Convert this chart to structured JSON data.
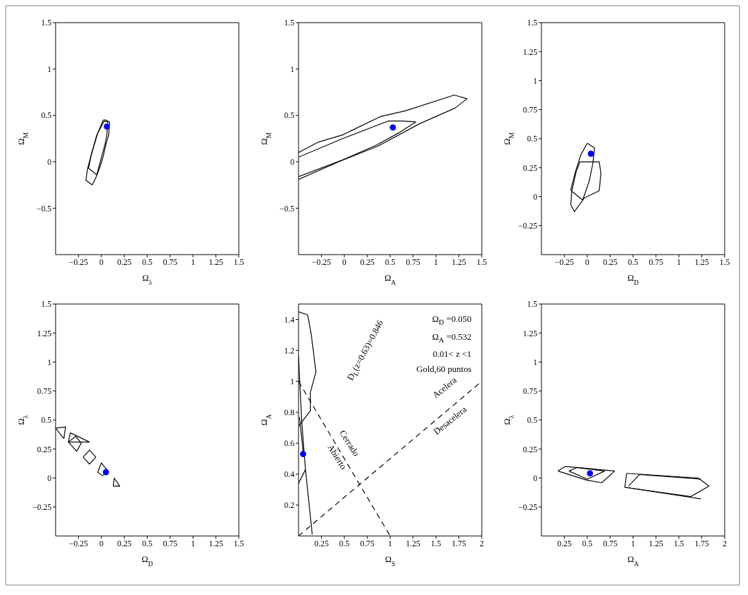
{
  "chart_data": [
    {
      "type": "line",
      "xlabel": "Ω$_{λ}$",
      "ylabel": "Ω$_{M}$",
      "xlim": [
        -0.5,
        1.5
      ],
      "ylim": [
        -1,
        1.5
      ],
      "xticks": [
        -0.25,
        0,
        0.25,
        0.5,
        0.75,
        1,
        1.25,
        1.5
      ],
      "yticks": [
        -0.5,
        0,
        0.5,
        1,
        1.5
      ],
      "series": [
        {
          "color": "#000000",
          "marker": "none",
          "x": [
            0.02,
            0.05,
            0.09,
            0.08,
            0.05,
            0.02,
            -0.02,
            -0.06,
            -0.1
          ],
          "values": [
            0.45,
            0.45,
            0.43,
            0.29,
            0.19,
            0.06,
            -0.07,
            -0.17,
            -0.25
          ]
        },
        {
          "color": "#000000",
          "marker": "none",
          "x": [
            -0.1,
            -0.17,
            -0.15,
            -0.1,
            -0.04,
            0.02
          ],
          "values": [
            -0.25,
            -0.2,
            -0.07,
            0.11,
            0.31,
            0.45
          ]
        },
        {
          "color": "#000000",
          "marker": "none",
          "x": [
            0.03,
            0.07,
            0.06,
            0.04,
            -0.01,
            -0.05
          ],
          "values": [
            0.44,
            0.43,
            0.29,
            0.19,
            0.01,
            -0.14
          ]
        },
        {
          "color": "#000000",
          "marker": "none",
          "x": [
            -0.05,
            -0.14,
            -0.11,
            -0.05,
            0.03
          ],
          "values": [
            -0.14,
            -0.07,
            0.08,
            0.29,
            0.44
          ]
        },
        {
          "type": "scatter",
          "color": "#0000ff",
          "marker": "circle",
          "x": [
            0.06
          ],
          "values": [
            0.38
          ]
        }
      ]
    },
    {
      "type": "line",
      "xlabel": "Ω$_{A}$",
      "ylabel": "Ω$_{M}$",
      "xlim": [
        -0.5,
        1.5
      ],
      "ylim": [
        -1,
        1.5
      ],
      "xticks": [
        -0.25,
        0,
        0.25,
        0.5,
        0.75,
        1,
        1.25,
        1.5
      ],
      "yticks": [
        -0.5,
        0,
        0.5,
        1,
        1.5
      ],
      "series": [
        {
          "color": "#000000",
          "marker": "none",
          "x": [
            -0.5,
            -0.29,
            -0.02,
            0.4,
            0.67,
            1.2,
            1.34,
            1.21,
            0.82,
            0.37,
            -0.04,
            -0.5
          ],
          "values": [
            0.1,
            0.21,
            0.29,
            0.49,
            0.55,
            0.72,
            0.68,
            0.58,
            0.41,
            0.17,
            0.01,
            -0.19
          ]
        },
        {
          "color": "#000000",
          "marker": "none",
          "x": [
            -0.5,
            -0.02,
            0.48,
            0.64,
            0.78,
            0.59,
            0.35,
            -0.02,
            -0.5
          ],
          "values": [
            0.05,
            0.25,
            0.44,
            0.44,
            0.43,
            0.31,
            0.18,
            0.02,
            -0.16
          ]
        },
        {
          "type": "scatter",
          "color": "#0000ff",
          "marker": "circle",
          "x": [
            0.53
          ],
          "values": [
            0.37
          ]
        }
      ]
    },
    {
      "type": "line",
      "xlabel": "Ω$_{D}$",
      "ylabel": "Ω$_{M}$",
      "xlim": [
        -0.5,
        1.5
      ],
      "ylim": [
        -0.5,
        1.5
      ],
      "xticks": [
        -0.25,
        0,
        0.25,
        0.5,
        0.75,
        1,
        1.25,
        1.5
      ],
      "yticks": [
        -0.25,
        0,
        0.25,
        0.5,
        0.75,
        1,
        1.25,
        1.5
      ],
      "series": [
        {
          "color": "#000000",
          "marker": "none",
          "x": [
            0,
            0.08,
            0.06,
            0.02,
            -0.05
          ],
          "values": [
            0.46,
            0.42,
            0.28,
            0.13,
            -0.03
          ]
        },
        {
          "color": "#000000",
          "marker": "none",
          "x": [
            -0.05,
            -0.16,
            -0.18,
            -0.13,
            -0.07,
            0
          ],
          "values": [
            -0.03,
            0.04,
            0.06,
            0.21,
            0.36,
            0.46
          ]
        },
        {
          "color": "#000000",
          "marker": "none",
          "x": [
            -0.08,
            0.13,
            0.15,
            0.13,
            -0.03
          ],
          "values": [
            0.3,
            0.3,
            0.2,
            0.05,
            -0.01
          ]
        },
        {
          "color": "#000000",
          "marker": "none",
          "x": [
            -0.03,
            -0.14,
            -0.18,
            -0.17,
            -0.12,
            -0.08
          ],
          "values": [
            -0.01,
            -0.13,
            -0.07,
            0.04,
            0.22,
            0.3
          ]
        },
        {
          "type": "scatter",
          "color": "#0000ff",
          "marker": "circle",
          "x": [
            0.04
          ],
          "values": [
            0.37
          ]
        }
      ]
    },
    {
      "type": "line",
      "xlabel": "Ω$_{D}$",
      "ylabel": "Ω$_{λ}$",
      "xlim": [
        -0.5,
        1.5
      ],
      "ylim": [
        -0.5,
        1.5
      ],
      "xticks": [
        -0.25,
        0,
        0.25,
        0.5,
        0.75,
        1,
        1.25,
        1.5
      ],
      "yticks": [
        -0.25,
        0,
        0.25,
        0.5,
        0.75,
        1,
        1.25,
        1.5
      ],
      "series": [
        {
          "color": "#000000",
          "marker": "none",
          "x": [
            -0.5,
            -0.39,
            -0.41
          ],
          "values": [
            0.43,
            0.44,
            0.34
          ]
        },
        {
          "color": "#000000",
          "marker": "none",
          "x": [
            -0.41,
            -0.5
          ],
          "values": [
            0.34,
            0.43
          ]
        },
        {
          "color": "#000000",
          "marker": "none",
          "x": [
            -0.34,
            -0.13,
            -0.36
          ],
          "values": [
            0.39,
            0.31,
            0.31
          ]
        },
        {
          "color": "#000000",
          "marker": "none",
          "x": [
            -0.36,
            -0.34
          ],
          "values": [
            0.31,
            0.39
          ]
        },
        {
          "color": "#000000",
          "marker": "none",
          "x": [
            -0.36,
            -0.28,
            -0.22
          ],
          "values": [
            0.31,
            0.36,
            0.3
          ]
        },
        {
          "color": "#000000",
          "marker": "none",
          "x": [
            -0.22,
            -0.27,
            -0.36
          ],
          "values": [
            0.3,
            0.23,
            0.31
          ]
        },
        {
          "color": "#000000",
          "marker": "none",
          "x": [
            -0.2,
            -0.13,
            -0.06
          ],
          "values": [
            0.18,
            0.24,
            0.18
          ]
        },
        {
          "color": "#000000",
          "marker": "none",
          "x": [
            -0.06,
            -0.13,
            -0.2
          ],
          "values": [
            0.18,
            0.12,
            0.18
          ]
        },
        {
          "color": "#000000",
          "marker": "none",
          "x": [
            -0.04,
            0,
            0.07
          ],
          "values": [
            0.05,
            0.13,
            0.06
          ]
        },
        {
          "color": "#000000",
          "marker": "none",
          "x": [
            0.07,
            0.01,
            -0.04
          ],
          "values": [
            0.06,
            0.02,
            0.05
          ]
        },
        {
          "color": "#000000",
          "marker": "none",
          "x": [
            0.14,
            0.2,
            0.13
          ],
          "values": [
            0,
            -0.07,
            -0.07
          ]
        },
        {
          "color": "#000000",
          "marker": "none",
          "x": [
            0.13,
            0.14
          ],
          "values": [
            -0.07,
            0
          ]
        },
        {
          "type": "scatter",
          "color": "#0000ff",
          "marker": "circle",
          "x": [
            0.05
          ],
          "values": [
            0.05
          ]
        }
      ]
    },
    {
      "type": "line",
      "xlabel": "Ω$_{S}$",
      "ylabel": "Ω$_{A}$",
      "xlim": [
        0,
        2
      ],
      "ylim": [
        0,
        1.5
      ],
      "xticks": [
        0.25,
        0.5,
        0.75,
        1,
        1.25,
        1.5,
        1.75,
        2
      ],
      "yticks": [
        0.2,
        0.4,
        0.6,
        0.8,
        1,
        1.2,
        1.4
      ],
      "annotations": [
        "Ω$_{D}$ =0.050",
        "Ω$_{A}$ =0.532",
        "0.01< z <1",
        "Gold,60 puntos",
        "D$_{L}$(z=0.63)=0.846",
        "Acelera",
        "Desacelera",
        "Cerrado",
        "Abierto"
      ],
      "series": [
        {
          "color": "#000000",
          "marker": "none",
          "x": [
            0,
            0.1,
            0.14,
            0.19,
            0.13,
            0.13,
            0
          ],
          "values": [
            1.45,
            1.43,
            1.3,
            1.06,
            0.93,
            0.81,
            0.71
          ]
        },
        {
          "color": "#000000",
          "marker": "none",
          "x": [
            0,
            0.035,
            0.076,
            0.15
          ],
          "values": [
            1.16,
            0.74,
            0.43,
            0.01
          ]
        },
        {
          "color": "#000000",
          "marker": "none",
          "x": [
            0,
            0.076
          ],
          "values": [
            0.34,
            0.43
          ]
        },
        {
          "color": "#000000",
          "marker": "none",
          "x": [
            0.01,
            0.05
          ],
          "values": [
            0.77,
            0.55
          ]
        },
        {
          "color": "#000000",
          "marker": "none",
          "line_style": "dashed",
          "x": [
            0,
            1
          ],
          "values": [
            1,
            0
          ]
        },
        {
          "color": "#000000",
          "marker": "none",
          "line_style": "dashed",
          "x": [
            0,
            2
          ],
          "values": [
            0,
            1
          ]
        },
        {
          "type": "scatter",
          "color": "#0000ff",
          "marker": "circle",
          "x": [
            0.05
          ],
          "values": [
            0.53
          ]
        }
      ]
    },
    {
      "type": "line",
      "xlabel": "Ω$_{A}$",
      "ylabel": "Ω$_{λ}$",
      "xlim": [
        0,
        2
      ],
      "ylim": [
        -0.5,
        1.5
      ],
      "xticks": [
        0.25,
        0.5,
        0.75,
        1,
        1.25,
        1.5,
        1.75,
        2
      ],
      "yticks": [
        -0.25,
        0,
        0.25,
        0.5,
        0.75,
        1,
        1.25,
        1.5
      ],
      "series": [
        {
          "color": "#000000",
          "marker": "none",
          "x": [
            0.18,
            0.26,
            0.8
          ],
          "values": [
            0.06,
            0.1,
            0.06
          ]
        },
        {
          "color": "#000000",
          "marker": "none",
          "x": [
            0.8,
            0.66,
            0.5,
            0.18
          ],
          "values": [
            0.06,
            -0.04,
            -0.02,
            0.06
          ]
        },
        {
          "color": "#000000",
          "marker": "none",
          "x": [
            0.3,
            0.39,
            0.69
          ],
          "values": [
            0.06,
            0.09,
            0.06
          ]
        },
        {
          "color": "#000000",
          "marker": "none",
          "x": [
            0.69,
            0.5,
            0.3
          ],
          "values": [
            0.06,
            -0.01,
            0.06
          ]
        },
        {
          "color": "#000000",
          "marker": "none",
          "x": [
            0.93,
            1.71,
            1.83
          ],
          "values": [
            0.04,
            0.0,
            -0.07
          ]
        },
        {
          "color": "#000000",
          "marker": "none",
          "x": [
            1.83,
            1.63,
            0.91,
            0.93
          ],
          "values": [
            -0.07,
            -0.16,
            -0.08,
            0.04
          ]
        },
        {
          "color": "#000000",
          "marker": "none",
          "x": [
            0.95,
            1.07,
            1.74
          ],
          "values": [
            -0.07,
            0.03,
            -0.01
          ]
        },
        {
          "color": "#000000",
          "marker": "none",
          "x": [
            0.91,
            1.74
          ],
          "values": [
            -0.08,
            -0.18
          ]
        },
        {
          "type": "scatter",
          "color": "#0000ff",
          "marker": "circle",
          "x": [
            0.53
          ],
          "values": [
            0.04
          ]
        }
      ]
    }
  ]
}
